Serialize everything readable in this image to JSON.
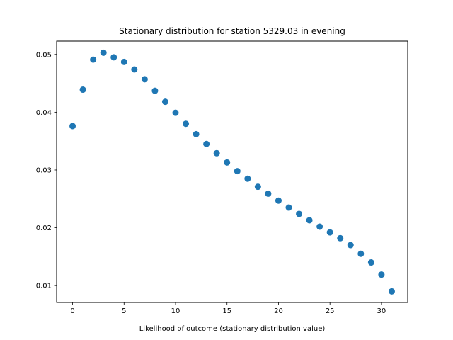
{
  "chart_data": {
    "type": "scatter",
    "title": "Stationary distribution for station 5329.03 in evening",
    "xlabel": "Likelihood of outcome (stationary distribution value)",
    "ylabel": "",
    "xlim": [
      -1.55,
      32.55
    ],
    "ylim": [
      0.00708,
      0.0523
    ],
    "x_ticks": [
      0,
      5,
      10,
      15,
      20,
      25,
      30
    ],
    "y_ticks": [
      0.01,
      0.02,
      0.03,
      0.04,
      0.05
    ],
    "x_tick_labels": [
      "0",
      "5",
      "10",
      "15",
      "20",
      "25",
      "30"
    ],
    "y_tick_labels": [
      "0.01",
      "0.02",
      "0.03",
      "0.04",
      "0.05"
    ],
    "grid": false,
    "marker_color": "#1f77b4",
    "x": [
      0,
      1,
      2,
      3,
      4,
      5,
      6,
      7,
      8,
      9,
      10,
      11,
      12,
      13,
      14,
      15,
      16,
      17,
      18,
      19,
      20,
      21,
      22,
      23,
      24,
      25,
      26,
      27,
      28,
      29,
      30,
      31
    ],
    "y": [
      0.0376,
      0.0439,
      0.0491,
      0.0503,
      0.0495,
      0.0487,
      0.0474,
      0.0457,
      0.0437,
      0.0418,
      0.0399,
      0.038,
      0.0362,
      0.0345,
      0.0329,
      0.0313,
      0.0298,
      0.0285,
      0.0271,
      0.0259,
      0.0247,
      0.0235,
      0.0224,
      0.0213,
      0.0202,
      0.0192,
      0.0182,
      0.017,
      0.0155,
      0.014,
      0.0119,
      0.009
    ]
  }
}
